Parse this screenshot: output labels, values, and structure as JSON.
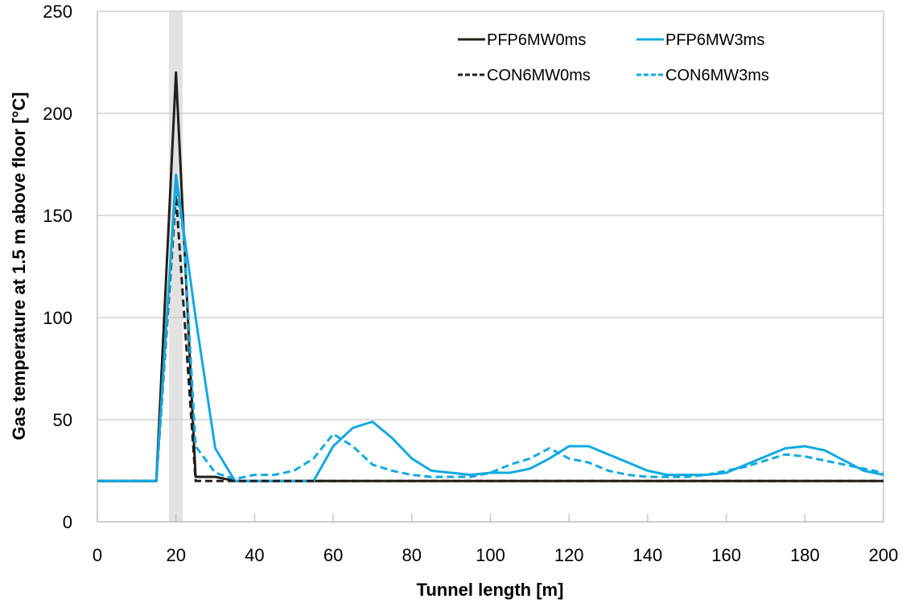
{
  "chart_data": {
    "type": "line",
    "title": "",
    "xlabel": "Tunnel length [m]",
    "ylabel": "Gas temperature at 1.5 m above floor [°C]",
    "xlim": [
      0,
      200
    ],
    "ylim": [
      0,
      250
    ],
    "xticks": [
      0,
      20,
      40,
      60,
      80,
      100,
      120,
      140,
      160,
      180,
      200
    ],
    "yticks": [
      0,
      50,
      100,
      150,
      200,
      250
    ],
    "grid": "horizontal",
    "legend_position": "top-right",
    "shaded_band": {
      "from": 18.2,
      "to": 21.7,
      "color": "#e2e2e2"
    },
    "colors": {
      "black": "#231f1a",
      "blue": "#12a9e1",
      "grid": "#c8c8c8",
      "axis": "#bdbdbd"
    },
    "series": [
      {
        "name": "PFP6MW0ms",
        "color": "#231f1a",
        "dash": "solid",
        "x": [
          0,
          15,
          20,
          25,
          30,
          35,
          40,
          200
        ],
        "y": [
          20,
          20,
          220,
          22,
          22,
          20,
          20,
          20
        ]
      },
      {
        "name": "PFP6MW3ms",
        "color": "#12a9e1",
        "dash": "solid",
        "x": [
          0,
          15,
          20,
          25,
          30,
          35,
          40,
          45,
          50,
          55,
          60,
          65,
          70,
          75,
          80,
          85,
          90,
          95,
          100,
          105,
          110,
          115,
          120,
          125,
          130,
          135,
          140,
          145,
          150,
          155,
          160,
          165,
          170,
          175,
          180,
          185,
          190,
          195,
          200
        ],
        "y": [
          20,
          20,
          170,
          100,
          36,
          20,
          20,
          20,
          20,
          20,
          37,
          46,
          49,
          41,
          31,
          25,
          24,
          23,
          24,
          24,
          26,
          31,
          37,
          37,
          33,
          29,
          25,
          23,
          23,
          23,
          24,
          28,
          32,
          36,
          37,
          35,
          30,
          25,
          23
        ]
      },
      {
        "name": "CON6MW0ms",
        "color": "#231f1a",
        "dash": "dashed",
        "x": [
          0,
          15,
          20,
          25,
          30,
          35,
          40,
          200
        ],
        "y": [
          20,
          20,
          160,
          20,
          20,
          20,
          20,
          20
        ]
      },
      {
        "name": "CON6MW3ms",
        "color": "#12a9e1",
        "dash": "dashed",
        "x": [
          0,
          15,
          20,
          22,
          25,
          30,
          35,
          40,
          45,
          50,
          55,
          60,
          65,
          70,
          75,
          80,
          85,
          90,
          95,
          100,
          105,
          110,
          115,
          120,
          125,
          130,
          135,
          140,
          145,
          150,
          155,
          160,
          165,
          170,
          175,
          180,
          185,
          190,
          195,
          200
        ],
        "y": [
          20,
          20,
          165,
          140,
          37,
          24,
          21,
          23,
          23,
          25,
          31,
          43,
          37,
          28,
          25,
          23,
          22,
          22,
          22,
          24,
          28,
          31,
          36,
          31,
          29,
          25,
          23,
          22,
          22,
          22,
          23,
          25,
          27,
          30,
          33,
          32,
          30,
          28,
          26,
          24
        ]
      }
    ]
  }
}
